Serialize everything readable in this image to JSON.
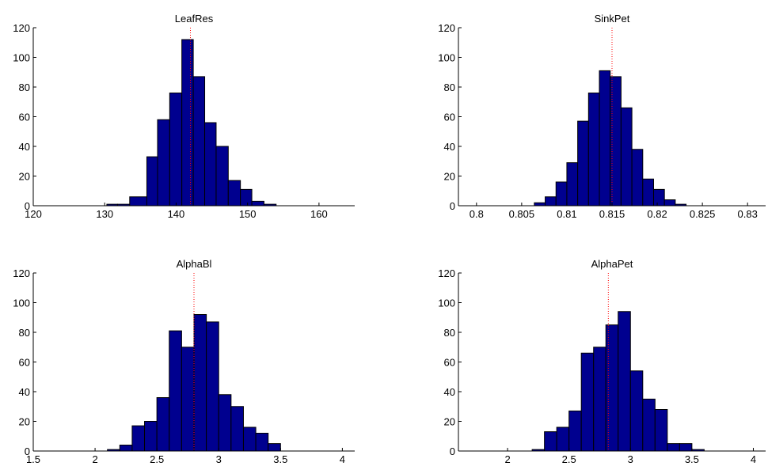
{
  "chart_data": [
    {
      "type": "bar",
      "title": "LeafRes",
      "xlim": [
        120,
        165
      ],
      "ylim": [
        0,
        120
      ],
      "xticks": [
        120,
        130,
        140,
        150,
        160
      ],
      "xtick_labels": [
        "120",
        "130",
        "140",
        "150",
        "160"
      ],
      "yticks": [
        0,
        20,
        40,
        60,
        80,
        100,
        120
      ],
      "ytick_labels": [
        "0",
        "20",
        "40",
        "60",
        "80",
        "100",
        "120"
      ],
      "bin_edges": [
        130.3,
        131.8,
        133.5,
        135.9,
        137.4,
        139.1,
        140.8,
        142.4,
        144.0,
        145.6,
        147.3,
        149.0,
        150.6,
        152.3,
        154.0
      ],
      "values": [
        1,
        1,
        6,
        33,
        58,
        76,
        112,
        87,
        56,
        40,
        17,
        11,
        3,
        1
      ],
      "reference_x": 142,
      "bar_color": "#00008f",
      "reference_color": "#ff0000",
      "grid": false
    },
    {
      "type": "bar",
      "title": "SinkPet",
      "xlim": [
        0.798,
        0.832
      ],
      "ylim": [
        0,
        120
      ],
      "xticks": [
        0.8,
        0.805,
        0.81,
        0.815,
        0.82,
        0.825,
        0.83
      ],
      "xtick_labels": [
        "0.8",
        "0.805",
        "0.81",
        "0.815",
        "0.82",
        "0.825",
        "0.83"
      ],
      "yticks": [
        0,
        20,
        40,
        60,
        80,
        100,
        120
      ],
      "ytick_labels": [
        "0",
        "20",
        "40",
        "60",
        "80",
        "100",
        "120"
      ],
      "bin_edges": [
        0.8064,
        0.8076,
        0.8088,
        0.81,
        0.8112,
        0.8124,
        0.8136,
        0.8148,
        0.816,
        0.8172,
        0.8184,
        0.8196,
        0.8208,
        0.822,
        0.8232,
        0.8244
      ],
      "values": [
        2,
        6,
        16,
        29,
        57,
        76,
        91,
        87,
        66,
        38,
        18,
        11,
        4,
        1,
        0
      ],
      "reference_x": 0.815,
      "bar_color": "#00008f",
      "reference_color": "#ff0000",
      "grid": false
    },
    {
      "type": "bar",
      "title": "AlphaBl",
      "xlim": [
        1.5,
        4.1
      ],
      "ylim": [
        0,
        120
      ],
      "xticks": [
        1.5,
        2,
        2.5,
        3,
        3.5,
        4
      ],
      "xtick_labels": [
        "1.5",
        "2",
        "2.5",
        "3",
        "3.5",
        "4"
      ],
      "yticks": [
        0,
        20,
        40,
        60,
        80,
        100,
        120
      ],
      "ytick_labels": [
        "0",
        "20",
        "40",
        "60",
        "80",
        "100",
        "120"
      ],
      "bin_edges": [
        2.1,
        2.2,
        2.3,
        2.4,
        2.5,
        2.6,
        2.7,
        2.8,
        2.9,
        3.0,
        3.1,
        3.2,
        3.3,
        3.4,
        3.5
      ],
      "values": [
        1,
        4,
        17,
        20,
        36,
        81,
        70,
        92,
        87,
        38,
        30,
        16,
        12,
        5
      ],
      "reference_x": 2.8,
      "bar_color": "#00008f",
      "reference_color": "#ff0000",
      "grid": false
    },
    {
      "type": "bar",
      "title": "AlphaPet",
      "xlim": [
        1.6,
        4.1
      ],
      "ylim": [
        0,
        120
      ],
      "xticks": [
        2,
        2.5,
        3,
        3.5,
        4
      ],
      "xtick_labels": [
        "2",
        "2.5",
        "3",
        "3.5",
        "4"
      ],
      "yticks": [
        0,
        20,
        40,
        60,
        80,
        100,
        120
      ],
      "ytick_labels": [
        "0",
        "20",
        "40",
        "60",
        "80",
        "100",
        "120"
      ],
      "bin_edges": [
        2.2,
        2.3,
        2.4,
        2.5,
        2.6,
        2.7,
        2.8,
        2.9,
        3.0,
        3.1,
        3.2,
        3.3,
        3.4,
        3.5,
        3.6
      ],
      "values": [
        1,
        13,
        16,
        27,
        66,
        70,
        85,
        94,
        54,
        35,
        28,
        5,
        5,
        1
      ],
      "reference_x": 2.82,
      "bar_color": "#00008f",
      "reference_color": "#ff0000",
      "grid": false
    }
  ]
}
